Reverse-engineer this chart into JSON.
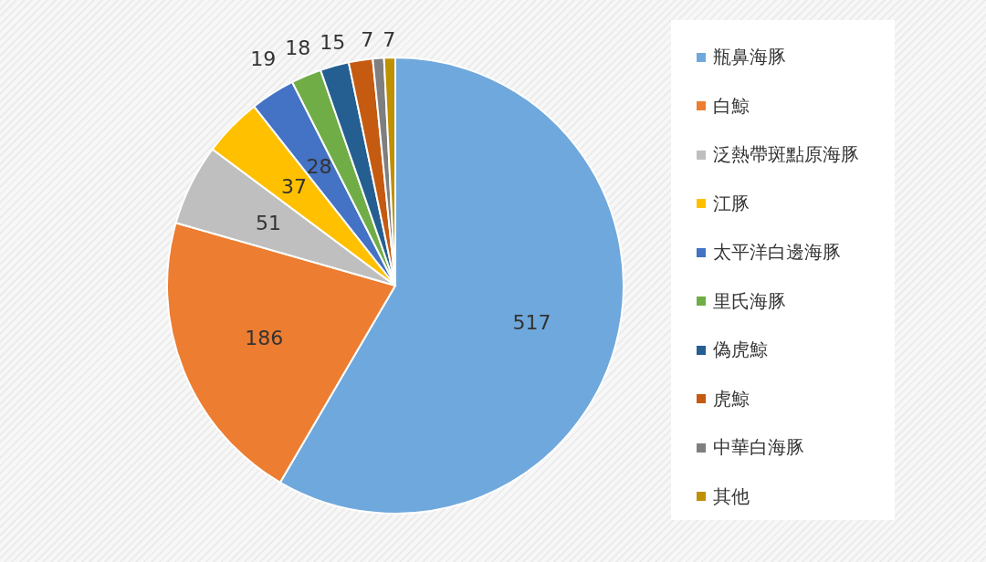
{
  "chart_data": {
    "type": "pie",
    "categories": [
      "瓶鼻海豚",
      "白鯨",
      "泛熱帶斑點原海豚",
      "江豚",
      "太平洋白邊海豚",
      "里氏海豚",
      "偽虎鯨",
      "虎鯨",
      "中華白海豚",
      "其他"
    ],
    "values": [
      517,
      186,
      51,
      37,
      28,
      19,
      18,
      15,
      7,
      7
    ],
    "colors": [
      "#6fa8dc",
      "#ed7d31",
      "#bfbfbf",
      "#ffc000",
      "#4472c4",
      "#70ad47",
      "#255e91",
      "#c55a11",
      "#7f7f7f",
      "#bf9000"
    ],
    "data_labels": true,
    "legend": "right"
  }
}
